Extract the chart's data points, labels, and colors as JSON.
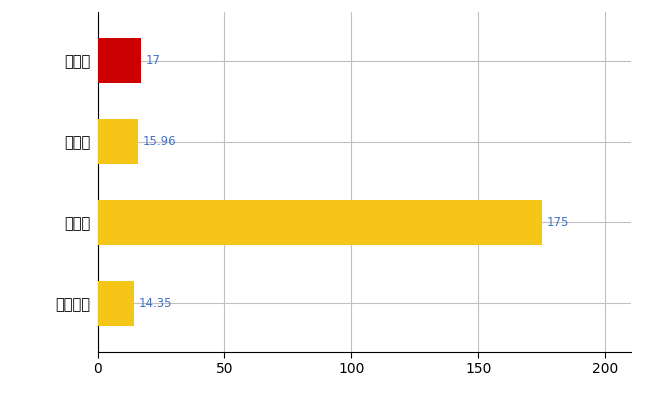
{
  "categories": [
    "柳川市",
    "県平均",
    "県最大",
    "全国平均"
  ],
  "values": [
    17,
    15.96,
    175,
    14.35
  ],
  "bar_colors": [
    "#cc0000",
    "#f5c518",
    "#f5c518",
    "#f5c518"
  ],
  "value_labels": [
    "17",
    "15.96",
    "175",
    "14.35"
  ],
  "value_label_color": "#4472c4",
  "xlim": [
    0,
    210
  ],
  "xticks": [
    0,
    50,
    100,
    150,
    200
  ],
  "grid_color": "#c0c0c0",
  "background_color": "#ffffff",
  "bar_height": 0.55,
  "label_fontsize": 10.5,
  "tick_fontsize": 10,
  "value_fontsize": 8.5
}
